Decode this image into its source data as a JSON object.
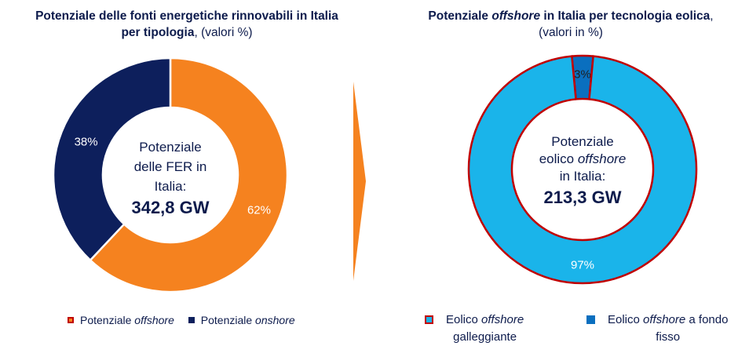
{
  "left_chart": {
    "title_bold": "Potenziale delle fonti energetiche rinnovabili in Italia",
    "title_bold2": "per tipologia",
    "title_suffix": ", (valori %)",
    "center_lines": [
      "Potenziale",
      "delle FER in",
      "Italia:"
    ],
    "center_value": "342,8 GW",
    "legend": [
      {
        "label_a": "Potenziale ",
        "label_em": "offshore",
        "color": "#f5821f"
      },
      {
        "label_a": "Potenziale ",
        "label_em": "onshore",
        "color": "#0d1f5c"
      }
    ]
  },
  "right_chart": {
    "title_a": "Potenziale ",
    "title_em": "offshore",
    "title_b": " in Italia per tecnologia eolica",
    "title_suffix": ",",
    "title_line2": "(valori in %)",
    "center_lines": [
      "Potenziale",
      "eolico ",
      "offshore",
      "in Italia:"
    ],
    "center_value": "213,3 GW",
    "legend": [
      {
        "label_a": "Eolico ",
        "label_em": "offshore",
        "label_b": "galleggiante",
        "color": "#1ab4ea"
      },
      {
        "label_a": "Eolico ",
        "label_em": "offshore",
        "label_a2": " a fondo",
        "label_b": "fisso",
        "color": "#0a6fbf"
      }
    ]
  },
  "colors": {
    "orange": "#f5821f",
    "navy": "#0d1f5c",
    "light_blue": "#1ab4ea",
    "mid_blue": "#0a6fbf",
    "border_red": "#c00000",
    "arrow": "#f5821f"
  },
  "footnote": "",
  "chart_data": [
    {
      "type": "pie",
      "title": "Potenziale delle fonti energetiche rinnovabili in Italia per tipologia, (valori %)",
      "categories": [
        "Potenziale offshore",
        "Potenziale onshore"
      ],
      "values": [
        62,
        38
      ],
      "labels": [
        "62%",
        "38%"
      ],
      "donut": true,
      "center_text": "Potenziale delle FER in Italia: 342,8 GW",
      "legend": "bottom"
    },
    {
      "type": "pie",
      "title": "Potenziale offshore in Italia per tecnologia eolica, (valori in %)",
      "categories": [
        "Eolico offshore galleggiante",
        "Eolico offshore a fondo fisso"
      ],
      "values": [
        97,
        3
      ],
      "labels": [
        "97%",
        "3%"
      ],
      "donut": true,
      "center_text": "Potenziale eolico offshore in Italia: 213,3 GW",
      "legend": "bottom"
    }
  ]
}
